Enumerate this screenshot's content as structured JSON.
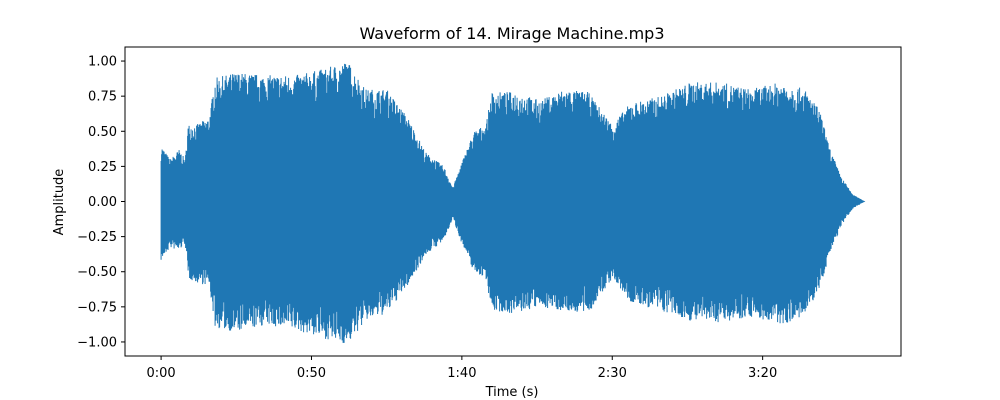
{
  "chart_data": {
    "type": "line",
    "title": "Waveform of 14. Mirage Machine.mp3",
    "xlabel": "Time (s)",
    "ylabel": "Amplitude",
    "xlim": [
      -12,
      246
    ],
    "ylim": [
      -1.1,
      1.1
    ],
    "xticks": [
      {
        "value": 0,
        "label": "0:00"
      },
      {
        "value": 50,
        "label": "0:50"
      },
      {
        "value": 100,
        "label": "1:40"
      },
      {
        "value": 150,
        "label": "2:30"
      },
      {
        "value": 200,
        "label": "3:20"
      }
    ],
    "yticks": [
      {
        "value": 1.0,
        "label": "1.00"
      },
      {
        "value": 0.75,
        "label": "0.75"
      },
      {
        "value": 0.5,
        "label": "0.50"
      },
      {
        "value": 0.25,
        "label": "0.25"
      },
      {
        "value": 0.0,
        "label": "0.00"
      },
      {
        "value": -0.25,
        "label": "−0.25"
      },
      {
        "value": -0.5,
        "label": "−0.50"
      },
      {
        "value": -0.75,
        "label": "−0.75"
      },
      {
        "value": -1.0,
        "label": "−1.00"
      }
    ],
    "grid": false,
    "series": [
      {
        "color": "#1f77b4",
        "envelope": [
          {
            "t": 0,
            "top": 0.4,
            "bottom": -0.42
          },
          {
            "t": 3,
            "top": 0.3,
            "bottom": -0.33
          },
          {
            "t": 6,
            "top": 0.37,
            "bottom": -0.35
          },
          {
            "t": 8,
            "top": 0.3,
            "bottom": -0.3
          },
          {
            "t": 9,
            "top": 0.55,
            "bottom": -0.55
          },
          {
            "t": 12,
            "top": 0.55,
            "bottom": -0.58
          },
          {
            "t": 16,
            "top": 0.6,
            "bottom": -0.6
          },
          {
            "t": 18,
            "top": 0.88,
            "bottom": -0.9
          },
          {
            "t": 25,
            "top": 0.92,
            "bottom": -0.93
          },
          {
            "t": 35,
            "top": 0.9,
            "bottom": -0.88
          },
          {
            "t": 45,
            "top": 0.9,
            "bottom": -0.92
          },
          {
            "t": 55,
            "top": 0.95,
            "bottom": -0.98
          },
          {
            "t": 62,
            "top": 1.0,
            "bottom": -1.02
          },
          {
            "t": 68,
            "top": 0.8,
            "bottom": -0.85
          },
          {
            "t": 75,
            "top": 0.8,
            "bottom": -0.8
          },
          {
            "t": 82,
            "top": 0.6,
            "bottom": -0.6
          },
          {
            "t": 88,
            "top": 0.35,
            "bottom": -0.38
          },
          {
            "t": 94,
            "top": 0.25,
            "bottom": -0.28
          },
          {
            "t": 97,
            "top": 0.1,
            "bottom": -0.12
          },
          {
            "t": 100,
            "top": 0.28,
            "bottom": -0.3
          },
          {
            "t": 104,
            "top": 0.5,
            "bottom": -0.5
          },
          {
            "t": 108,
            "top": 0.55,
            "bottom": -0.55
          },
          {
            "t": 110,
            "top": 0.78,
            "bottom": -0.78
          },
          {
            "t": 118,
            "top": 0.78,
            "bottom": -0.8
          },
          {
            "t": 126,
            "top": 0.72,
            "bottom": -0.75
          },
          {
            "t": 134,
            "top": 0.8,
            "bottom": -0.78
          },
          {
            "t": 142,
            "top": 0.78,
            "bottom": -0.8
          },
          {
            "t": 150,
            "top": 0.55,
            "bottom": -0.55
          },
          {
            "t": 156,
            "top": 0.7,
            "bottom": -0.72
          },
          {
            "t": 166,
            "top": 0.75,
            "bottom": -0.78
          },
          {
            "t": 176,
            "top": 0.85,
            "bottom": -0.85
          },
          {
            "t": 186,
            "top": 0.85,
            "bottom": -0.86
          },
          {
            "t": 196,
            "top": 0.8,
            "bottom": -0.82
          },
          {
            "t": 206,
            "top": 0.85,
            "bottom": -0.88
          },
          {
            "t": 214,
            "top": 0.8,
            "bottom": -0.82
          },
          {
            "t": 219,
            "top": 0.65,
            "bottom": -0.62
          },
          {
            "t": 222,
            "top": 0.4,
            "bottom": -0.4
          },
          {
            "t": 226,
            "top": 0.18,
            "bottom": -0.18
          },
          {
            "t": 230,
            "top": 0.05,
            "bottom": -0.05
          },
          {
            "t": 234,
            "top": 0.0,
            "bottom": 0.0
          }
        ]
      }
    ]
  }
}
